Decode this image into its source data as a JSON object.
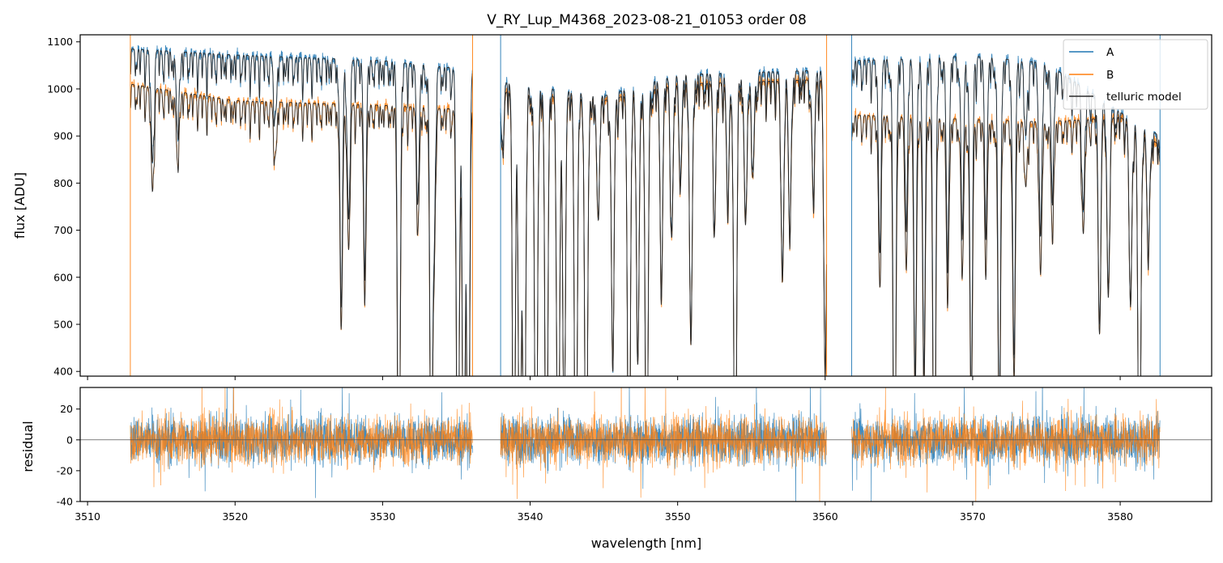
{
  "chart_data": [
    {
      "type": "line",
      "title": "V_RY_Lup_M4368_2023-08-21_01053  order 08",
      "xlabel": "",
      "ylabel": "flux [ADU]",
      "xlim": [
        3509.5,
        3586.2
      ],
      "ylim": [
        390,
        1115
      ],
      "yticks": [
        400,
        500,
        600,
        700,
        800,
        900,
        1000,
        1100
      ],
      "xticks": [
        3510,
        3520,
        3530,
        3540,
        3550,
        3560,
        3570,
        3580
      ],
      "x_tick_labels_shown": false,
      "grid": false,
      "legend_position": "top-right",
      "chip_ranges_nm": [
        [
          3512.9,
          3536.1
        ],
        [
          3538.0,
          3560.1
        ],
        [
          3561.8,
          3582.7
        ]
      ],
      "series": [
        {
          "name": "A",
          "color": "#1f77b4",
          "baseline": [
            [
              3512.9,
              1085
            ],
            [
              3520,
              1072
            ],
            [
              3530,
              1060
            ],
            [
              3536.1,
              1040
            ],
            [
              3538.0,
              1015
            ],
            [
              3545,
              985
            ],
            [
              3550,
              1030
            ],
            [
              3555,
              1035
            ],
            [
              3560.1,
              1040
            ],
            [
              3561.8,
              1060
            ],
            [
              3570,
              1070
            ],
            [
              3575,
              1055
            ],
            [
              3580,
              950
            ],
            [
              3582.7,
              900
            ]
          ]
        },
        {
          "name": "B",
          "color": "#ff7f0e",
          "baseline": [
            [
              3512.9,
              1010
            ],
            [
              3520,
              975
            ],
            [
              3530,
              965
            ],
            [
              3536.1,
              955
            ],
            [
              3538.0,
              995
            ],
            [
              3545,
              975
            ],
            [
              3550,
              1010
            ],
            [
              3555,
              1015
            ],
            [
              3560.1,
              1020
            ],
            [
              3561.8,
              945
            ],
            [
              3570,
              935
            ],
            [
              3575,
              930
            ],
            [
              3580,
              940
            ],
            [
              3582.7,
              880
            ]
          ]
        },
        {
          "name": "telluric model",
          "color": "#2b2b2b"
        }
      ],
      "absorption_lines_nm": [
        [
          3514.4,
          0.22
        ],
        [
          3516.1,
          0.15
        ],
        [
          3522.7,
          0.12
        ],
        [
          3527.2,
          0.48
        ],
        [
          3527.7,
          0.32
        ],
        [
          3528.8,
          0.4
        ],
        [
          3531.1,
          1.0
        ],
        [
          3532.4,
          0.26
        ],
        [
          3533.3,
          0.95
        ],
        [
          3533.5,
          0.3
        ],
        [
          3535.1,
          1.0
        ],
        [
          3535.5,
          1.0
        ],
        [
          3535.8,
          1.0
        ],
        [
          3538.1,
          0.12
        ],
        [
          3538.9,
          1.0
        ],
        [
          3539.3,
          1.0
        ],
        [
          3539.6,
          1.0
        ],
        [
          3540.4,
          1.0
        ],
        [
          3541.1,
          1.0
        ],
        [
          3541.9,
          1.0
        ],
        [
          3542.3,
          0.72
        ],
        [
          3543.1,
          1.0
        ],
        [
          3543.8,
          1.0
        ],
        [
          3544.6,
          0.25
        ],
        [
          3545.6,
          0.58
        ],
        [
          3546.7,
          1.0
        ],
        [
          3547.3,
          0.58
        ],
        [
          3547.9,
          1.0
        ],
        [
          3548.9,
          0.42
        ],
        [
          3549.6,
          0.32
        ],
        [
          3550.2,
          0.2
        ],
        [
          3550.9,
          0.55
        ],
        [
          3552.5,
          0.3
        ],
        [
          3553.4,
          0.26
        ],
        [
          3553.9,
          1.0
        ],
        [
          3554.6,
          0.3
        ],
        [
          3555.1,
          0.2
        ],
        [
          3557.1,
          0.42
        ],
        [
          3557.6,
          0.32
        ],
        [
          3559.2,
          0.25
        ],
        [
          3560.0,
          0.62
        ],
        [
          3563.7,
          0.36
        ],
        [
          3564.7,
          1.0
        ],
        [
          3565.5,
          0.32
        ],
        [
          3566.1,
          0.62
        ],
        [
          3566.7,
          0.6
        ],
        [
          3567.4,
          1.0
        ],
        [
          3568.3,
          0.4
        ],
        [
          3569.3,
          0.34
        ],
        [
          3569.9,
          0.68
        ],
        [
          3570.9,
          0.32
        ],
        [
          3571.8,
          0.72
        ],
        [
          3572.8,
          0.58
        ],
        [
          3573.6,
          0.15
        ],
        [
          3574.6,
          0.35
        ],
        [
          3575.4,
          0.25
        ],
        [
          3577.5,
          0.26
        ],
        [
          3578.6,
          0.48
        ],
        [
          3579.2,
          0.4
        ],
        [
          3580.7,
          0.42
        ],
        [
          3581.3,
          1.0
        ],
        [
          3581.9,
          0.28
        ]
      ]
    },
    {
      "type": "line",
      "title": "",
      "xlabel": "wavelength [nm]",
      "ylabel": "residual",
      "xlim": [
        3509.5,
        3586.2
      ],
      "ylim": [
        -40,
        34
      ],
      "yticks": [
        -40,
        -20,
        0,
        20
      ],
      "xticks": [
        3510,
        3520,
        3530,
        3540,
        3550,
        3560,
        3570,
        3580
      ],
      "x_tick_labels": [
        "3510",
        "3520",
        "3530",
        "3540",
        "3550",
        "3560",
        "3570",
        "3580"
      ],
      "zero_line": 0,
      "series": [
        {
          "name": "A",
          "color": "#1f77b4",
          "scatter": 11
        },
        {
          "name": "B",
          "color": "#ff7f0e",
          "scatter": 11
        }
      ]
    }
  ]
}
